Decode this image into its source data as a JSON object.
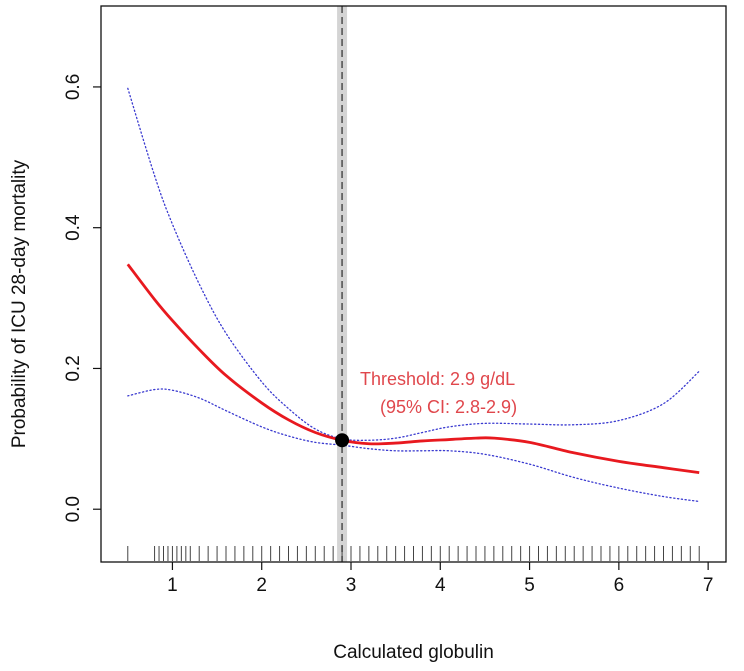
{
  "chart_data": {
    "type": "line",
    "xlabel": "Calculated globulin",
    "ylabel": "Probability of ICU 28-day mortality",
    "xlim": [
      0.2,
      7.2
    ],
    "ylim": [
      -0.075,
      0.715
    ],
    "x_ticks": [
      1,
      2,
      3,
      4,
      5,
      6,
      7
    ],
    "y_ticks": [
      0.0,
      0.2,
      0.4,
      0.6
    ],
    "x_tick_labels": [
      "1",
      "2",
      "3",
      "4",
      "5",
      "6",
      "7"
    ],
    "y_tick_labels": [
      "0.0",
      "0.2",
      "0.4",
      "0.6"
    ],
    "series": [
      {
        "role": "estimate",
        "color": "#e8191f",
        "style": "solid",
        "x": [
          0.5,
          0.8,
          1.0,
          1.3,
          1.6,
          2.0,
          2.3,
          2.6,
          2.9,
          3.2,
          3.5,
          3.8,
          4.1,
          4.4,
          4.6,
          5.0,
          5.5,
          6.0,
          6.5,
          6.9
        ],
        "y": [
          0.348,
          0.298,
          0.268,
          0.227,
          0.19,
          0.151,
          0.127,
          0.109,
          0.098,
          0.093,
          0.094,
          0.097,
          0.099,
          0.101,
          0.101,
          0.095,
          0.08,
          0.068,
          0.059,
          0.052
        ]
      },
      {
        "role": "upper-ci",
        "color": "#3a3ad0",
        "style": "dotted",
        "x": [
          0.5,
          0.8,
          1.0,
          1.3,
          1.6,
          2.0,
          2.3,
          2.6,
          2.9,
          3.2,
          3.5,
          3.8,
          4.1,
          4.5,
          5.0,
          5.5,
          6.0,
          6.5,
          6.9
        ],
        "y": [
          0.598,
          0.474,
          0.405,
          0.32,
          0.25,
          0.181,
          0.143,
          0.114,
          0.1,
          0.098,
          0.101,
          0.109,
          0.117,
          0.122,
          0.121,
          0.12,
          0.126,
          0.15,
          0.196
        ]
      },
      {
        "role": "lower-ci",
        "color": "#3a3ad0",
        "style": "dotted",
        "x": [
          0.5,
          0.8,
          1.0,
          1.3,
          1.6,
          2.0,
          2.3,
          2.6,
          2.9,
          3.2,
          3.5,
          3.8,
          4.1,
          4.5,
          5.0,
          5.5,
          6.0,
          6.5,
          6.9
        ],
        "y": [
          0.161,
          0.17,
          0.169,
          0.158,
          0.14,
          0.117,
          0.104,
          0.095,
          0.091,
          0.086,
          0.083,
          0.083,
          0.083,
          0.078,
          0.064,
          0.045,
          0.03,
          0.018,
          0.011
        ]
      }
    ],
    "threshold": {
      "x": 2.9,
      "y": 0.098,
      "ci": [
        2.8,
        2.9
      ],
      "line_color": "#555555",
      "band_color": "#d4d4d4",
      "label_line1": "Threshold: 2.9 g/dL",
      "label_line2": "(95% CI: 2.8-2.9)",
      "label_color": "#e0474c"
    },
    "rug": {
      "color": "#444444",
      "x": [
        0.5,
        0.8,
        0.85,
        0.9,
        0.95,
        1.0,
        1.05,
        1.1,
        1.15,
        1.2,
        1.3,
        1.4,
        1.5,
        1.6,
        1.7,
        1.8,
        1.9,
        2.0,
        2.1,
        2.2,
        2.3,
        2.4,
        2.5,
        2.6,
        2.7,
        2.8,
        2.9,
        3.0,
        3.1,
        3.2,
        3.3,
        3.4,
        3.5,
        3.6,
        3.7,
        3.8,
        3.9,
        4.0,
        4.1,
        4.2,
        4.3,
        4.4,
        4.5,
        4.6,
        4.7,
        4.8,
        4.9,
        5.0,
        5.1,
        5.2,
        5.3,
        5.4,
        5.5,
        5.6,
        5.7,
        5.8,
        5.9,
        6.0,
        6.1,
        6.2,
        6.3,
        6.4,
        6.5,
        6.6,
        6.7,
        6.8,
        6.9
      ]
    },
    "grid": false,
    "legend": "none"
  }
}
